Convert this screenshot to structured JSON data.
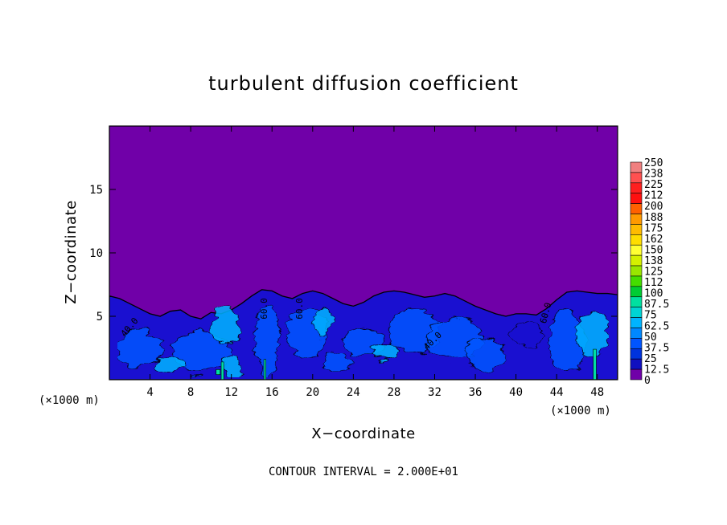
{
  "chart_data": {
    "type": "heatmap",
    "title": "turbulent diffusion coefficient",
    "xlabel": "X−coordinate",
    "ylabel": "Z−coordinate",
    "x_unit_left": "(×1000 m)",
    "x_unit_right": "(×1000 m)",
    "xlim": [
      0,
      50
    ],
    "ylim": [
      0,
      20
    ],
    "xticks": [
      "4",
      "8",
      "12",
      "16",
      "20",
      "24",
      "28",
      "32",
      "36",
      "40",
      "44",
      "48"
    ],
    "xtick_values": [
      4,
      8,
      12,
      16,
      20,
      24,
      28,
      32,
      36,
      40,
      44,
      48
    ],
    "yticks": [
      "5",
      "10",
      "15"
    ],
    "ytick_values": [
      5,
      10,
      15
    ],
    "note": "CONTOUR INTERVAL = 2.000E+01",
    "contour_labels": [
      {
        "text": "40.0",
        "x": 2.2,
        "z": 4.0,
        "rotate": -50
      },
      {
        "text": "60.0",
        "x": 15.5,
        "z": 5.6,
        "rotate": -90
      },
      {
        "text": "60.0",
        "x": 19.0,
        "z": 5.6,
        "rotate": -90
      },
      {
        "text": "40.0",
        "x": 32.0,
        "z": 2.9,
        "rotate": -45
      },
      {
        "text": "60.0",
        "x": 43.2,
        "z": 5.2,
        "rotate": -75
      }
    ],
    "boundary_layer_top": {
      "x": [
        0,
        1,
        2,
        3,
        4,
        5,
        6,
        7,
        8,
        9,
        10,
        11,
        12,
        13,
        14,
        15,
        16,
        17,
        18,
        19,
        20,
        21,
        22,
        23,
        24,
        25,
        26,
        27,
        28,
        29,
        30,
        31,
        32,
        33,
        34,
        35,
        36,
        37,
        38,
        39,
        40,
        41,
        42,
        43,
        44,
        45,
        46,
        47,
        48,
        49,
        50
      ],
      "z": [
        6.6,
        6.4,
        6.0,
        5.6,
        5.2,
        5.0,
        5.4,
        5.5,
        5.0,
        4.8,
        5.3,
        5.2,
        5.5,
        6.0,
        6.6,
        7.1,
        7.0,
        6.6,
        6.4,
        6.8,
        7.0,
        6.8,
        6.4,
        6.0,
        5.8,
        6.1,
        6.6,
        6.9,
        7.0,
        6.9,
        6.7,
        6.5,
        6.6,
        6.8,
        6.6,
        6.2,
        5.8,
        5.5,
        5.2,
        5.0,
        5.2,
        5.2,
        5.1,
        5.6,
        6.3,
        6.9,
        7.0,
        6.9,
        6.8,
        6.8,
        6.7
      ]
    },
    "colorbar": {
      "labels": [
        "250",
        "238",
        "225",
        "212",
        "200",
        "188",
        "175",
        "162",
        "150",
        "138",
        "125",
        "112",
        "100",
        "87.5",
        "75",
        "62.5",
        "50",
        "37.5",
        "25",
        "12.5",
        "0"
      ],
      "values": [
        250,
        237.5,
        225,
        212.5,
        200,
        187.5,
        175,
        162.5,
        150,
        137.5,
        125,
        112.5,
        100,
        87.5,
        75,
        62.5,
        50,
        37.5,
        25,
        12.5,
        0
      ],
      "colors": [
        "#f08080",
        "#ff5050",
        "#ff2020",
        "#ff1010",
        "#ff6000",
        "#ff9900",
        "#ffbb00",
        "#ffdd00",
        "#ffff33",
        "#d4f000",
        "#99e600",
        "#44dd00",
        "#00cc33",
        "#00e0a0",
        "#00d4d4",
        "#00b4ff",
        "#0088ff",
        "#0055ff",
        "#0033dd",
        "#1010c0",
        "#7000a8"
      ]
    },
    "field_colors": {
      "background": "#7000a8",
      "low": "#1a10d0",
      "mid": "#0055ff",
      "high": "#00b4ff",
      "peak": "#00e0a0"
    }
  }
}
